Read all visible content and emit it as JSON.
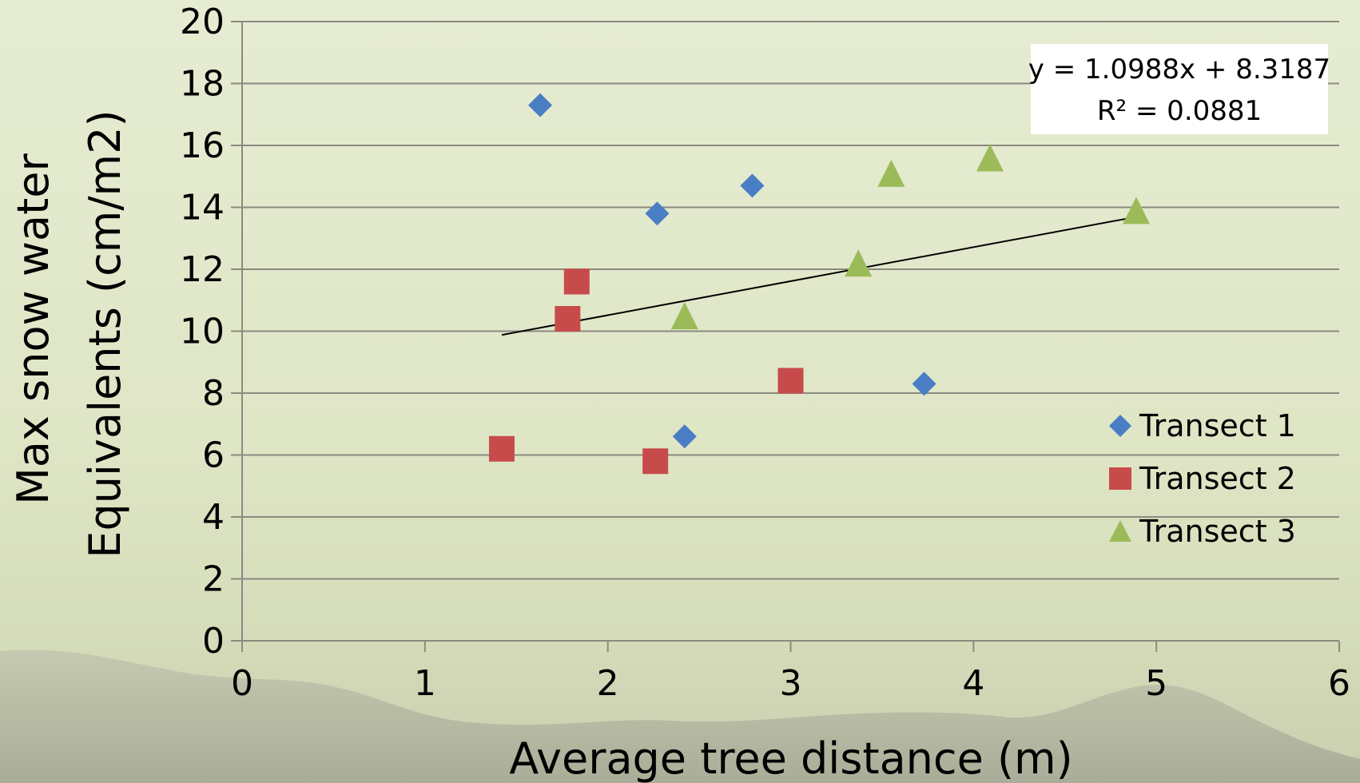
{
  "chart_data": {
    "type": "scatter",
    "title": "",
    "xlabel": "Average tree distance (m)",
    "ylabel": [
      "Max snow water",
      "Equivalents (cm/m2)"
    ],
    "xlim": [
      0,
      6
    ],
    "ylim": [
      0,
      20
    ],
    "xticks": [
      "0",
      "1",
      "2",
      "3",
      "4",
      "5",
      "6"
    ],
    "yticks": [
      "0",
      "2",
      "4",
      "6",
      "8",
      "10",
      "12",
      "14",
      "16",
      "18",
      "20"
    ],
    "grid": "horizontal",
    "legend_position": "right",
    "series": [
      {
        "name": "Transect 1",
        "marker": "diamond",
        "color": "#4a7ec4",
        "points": [
          [
            1.63,
            17.3
          ],
          [
            2.27,
            13.8
          ],
          [
            2.79,
            14.7
          ],
          [
            2.42,
            6.6
          ],
          [
            3.73,
            8.3
          ]
        ]
      },
      {
        "name": "Transect 2",
        "marker": "square",
        "color": "#c84b4b",
        "points": [
          [
            1.42,
            6.2
          ],
          [
            1.78,
            10.4
          ],
          [
            1.83,
            11.6
          ],
          [
            2.26,
            5.8
          ],
          [
            3.0,
            8.4
          ]
        ]
      },
      {
        "name": "Transect 3",
        "marker": "triangle",
        "color": "#9bbb59",
        "points": [
          [
            2.42,
            10.5
          ],
          [
            3.37,
            12.2
          ],
          [
            3.55,
            15.1
          ],
          [
            4.09,
            15.6
          ],
          [
            4.89,
            13.9
          ]
        ]
      }
    ],
    "trendline": {
      "slope": 1.0988,
      "intercept": 8.3187,
      "x_range": [
        1.42,
        4.89
      ],
      "equation": "y = 1.0988x + 8.3187",
      "r2": "R² = 0.0881"
    }
  }
}
